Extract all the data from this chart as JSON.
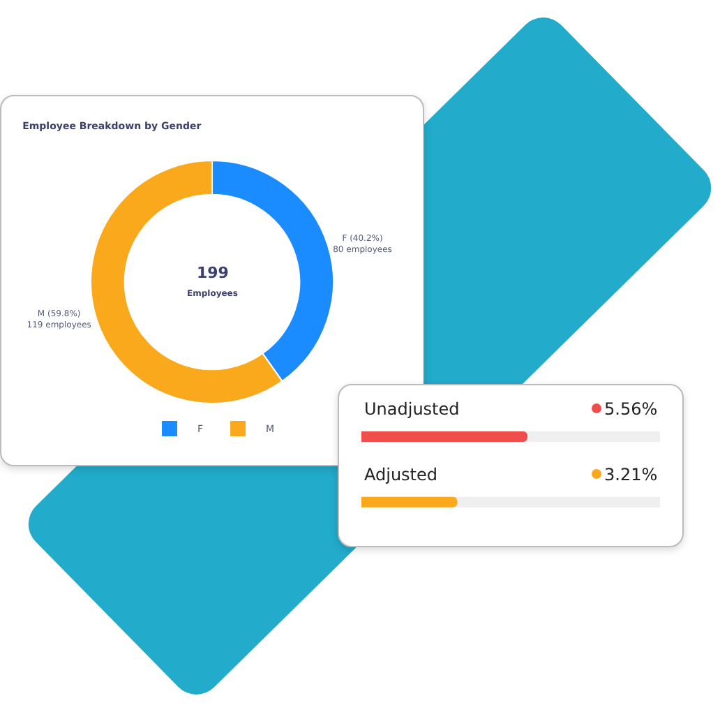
{
  "chart_data": [
    {
      "type": "donut",
      "title": "Employee Breakdown by Gender",
      "categories": [
        "F",
        "M"
      ],
      "values": [
        80,
        119
      ],
      "colors": [
        "#1a8cff",
        "#f9a91b"
      ],
      "value_labels": [
        "F (40.2%)\n80 employees",
        "M (59.8%)\n119 employees"
      ],
      "annotations": [
        "199",
        "Employees"
      ],
      "legend": "bottom"
    },
    {
      "type": "bar",
      "orientation": "horizontal",
      "categories": [
        "Unadjusted",
        "Adjusted"
      ],
      "values": [
        5.56,
        3.21
      ],
      "colors": [
        "#f04d4d",
        "#f9a91b"
      ],
      "value_labels": [
        "5.56%",
        "3.21%"
      ],
      "xlim": [
        0,
        10
      ]
    }
  ]
}
